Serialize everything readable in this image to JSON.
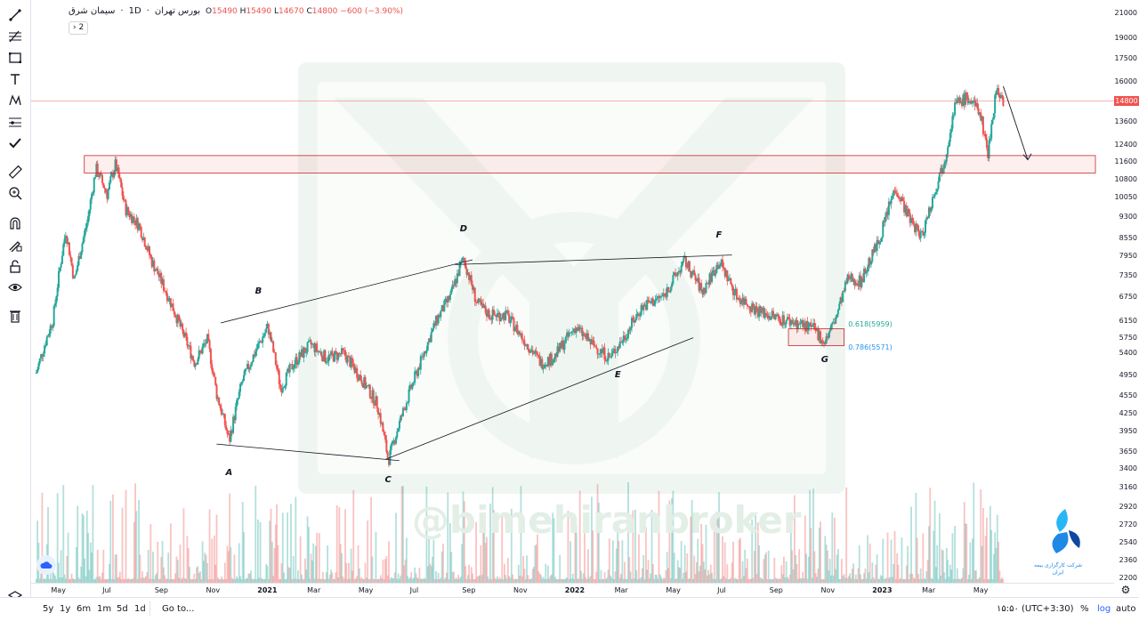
{
  "legend": {
    "symbol_name": "سیمان شرق",
    "interval": "1D",
    "exchange": "بورس تهران",
    "open_label": "O",
    "open": "15490",
    "high_label": "H",
    "high": "15490",
    "low_label": "L",
    "low": "14670",
    "close_label": "C",
    "close": "14800",
    "change": "−600 (−3.90%)",
    "collapse_label": "2"
  },
  "watermark": "@bimehiranbroker",
  "logo_text": "شرکت کارگزاری بیمه ایران",
  "colors": {
    "up": "#26a69a",
    "down": "#ef5350",
    "zone": "#ef5350",
    "fib1": "#26a69a",
    "fib2": "#2196f3"
  },
  "chart_data": {
    "type": "candlestick",
    "title": "",
    "price_scale": "log",
    "ylim": [
      2200,
      21000
    ],
    "current_price": "14800",
    "y_ticks": [
      "21000",
      "19000",
      "17500",
      "16000",
      "14800",
      "13600",
      "12400",
      "11600",
      "10800",
      "10050",
      "9300",
      "8550",
      "7950",
      "7350",
      "6750",
      "6150",
      "5750",
      "5400",
      "4950",
      "4550",
      "4250",
      "3950",
      "3650",
      "3400",
      "3160",
      "2920",
      "2720",
      "2540",
      "2360",
      "2200"
    ],
    "x_ticks": [
      "May",
      "Jul",
      "Sep",
      "Nov",
      "2021",
      "Mar",
      "May",
      "Jul",
      "Sep",
      "Nov",
      "2022",
      "Mar",
      "May",
      "Jul",
      "Sep",
      "Nov",
      "2023",
      "Mar",
      "May"
    ],
    "price_path": [
      [
        "2020-04-05",
        5000
      ],
      [
        "2020-04-25",
        6200
      ],
      [
        "2020-05-10",
        8800
      ],
      [
        "2020-05-20",
        7200
      ],
      [
        "2020-06-05",
        9200
      ],
      [
        "2020-06-15",
        11300
      ],
      [
        "2020-06-28",
        10200
      ],
      [
        "2020-07-08",
        11500
      ],
      [
        "2020-07-20",
        9600
      ],
      [
        "2020-08-05",
        9000
      ],
      [
        "2020-08-20",
        7800
      ],
      [
        "2020-09-10",
        6700
      ],
      [
        "2020-09-25",
        5900
      ],
      [
        "2020-10-10",
        5200
      ],
      [
        "2020-10-25",
        5700
      ],
      [
        "2020-11-05",
        4600
      ],
      [
        "2020-11-20",
        3800
      ],
      [
        "2020-12-05",
        4800
      ],
      [
        "2020-12-20",
        5400
      ],
      [
        "2021-01-05",
        6000
      ],
      [
        "2021-01-20",
        4700
      ],
      [
        "2021-02-05",
        5200
      ],
      [
        "2021-02-25",
        5600
      ],
      [
        "2021-03-15",
        5300
      ],
      [
        "2021-04-05",
        5400
      ],
      [
        "2021-04-25",
        4900
      ],
      [
        "2021-05-15",
        4400
      ],
      [
        "2021-05-28",
        3520
      ],
      [
        "2021-06-15",
        4300
      ],
      [
        "2021-07-05",
        5200
      ],
      [
        "2021-07-25",
        6200
      ],
      [
        "2021-08-10",
        6800
      ],
      [
        "2021-08-25",
        7900
      ],
      [
        "2021-09-10",
        6600
      ],
      [
        "2021-09-25",
        6300
      ],
      [
        "2021-10-15",
        6300
      ],
      [
        "2021-11-05",
        5700
      ],
      [
        "2021-11-25",
        5200
      ],
      [
        "2021-12-10",
        5300
      ],
      [
        "2022-01-05",
        6000
      ],
      [
        "2022-01-25",
        5600
      ],
      [
        "2022-02-15",
        5300
      ],
      [
        "2022-03-05",
        5800
      ],
      [
        "2022-03-25",
        6500
      ],
      [
        "2022-04-20",
        6800
      ],
      [
        "2022-05-15",
        7800
      ],
      [
        "2022-06-05",
        6900
      ],
      [
        "2022-06-25",
        7800
      ],
      [
        "2022-07-15",
        6800
      ],
      [
        "2022-08-10",
        6400
      ],
      [
        "2022-09-05",
        6200
      ],
      [
        "2022-09-25",
        6100
      ],
      [
        "2022-10-15",
        5950
      ],
      [
        "2022-10-28",
        5650
      ],
      [
        "2022-11-10",
        6200
      ],
      [
        "2022-11-25",
        7300
      ],
      [
        "2022-12-10",
        7200
      ],
      [
        "2023-01-01",
        8500
      ],
      [
        "2023-01-20",
        10500
      ],
      [
        "2023-02-05",
        9300
      ],
      [
        "2023-02-20",
        8600
      ],
      [
        "2023-03-05",
        10000
      ],
      [
        "2023-03-20",
        11800
      ],
      [
        "2023-04-01",
        14600
      ],
      [
        "2023-04-15",
        15000
      ],
      [
        "2023-04-30",
        14200
      ],
      [
        "2023-05-10",
        12000
      ],
      [
        "2023-05-20",
        15600
      ],
      [
        "2023-05-28",
        14800
      ]
    ],
    "annotations": {
      "resistance_zone": {
        "from": 11100,
        "to": 11900
      },
      "wave_labels": [
        {
          "label": "A",
          "date": "2020-11-20"
        },
        {
          "label": "B",
          "date": "2020-12-25"
        },
        {
          "label": "C",
          "date": "2021-05-28"
        },
        {
          "label": "D",
          "date": "2021-08-25"
        },
        {
          "label": "E",
          "date": "2022-02-25"
        },
        {
          "label": "F",
          "date": "2022-06-25"
        },
        {
          "label": "G",
          "date": "2022-10-28"
        }
      ],
      "fib_levels": [
        {
          "label": "0.618(5959)",
          "price": 5959
        },
        {
          "label": "0.786(5571)",
          "price": 5571
        }
      ]
    }
  },
  "bottom": {
    "ranges": [
      "5y",
      "1y",
      "6m",
      "1m",
      "5d",
      "1d"
    ],
    "goto": "Go to...",
    "time": "۱۵:۵۰ (UTC+3:30)",
    "percent": "%",
    "log": "log",
    "auto": "auto"
  }
}
